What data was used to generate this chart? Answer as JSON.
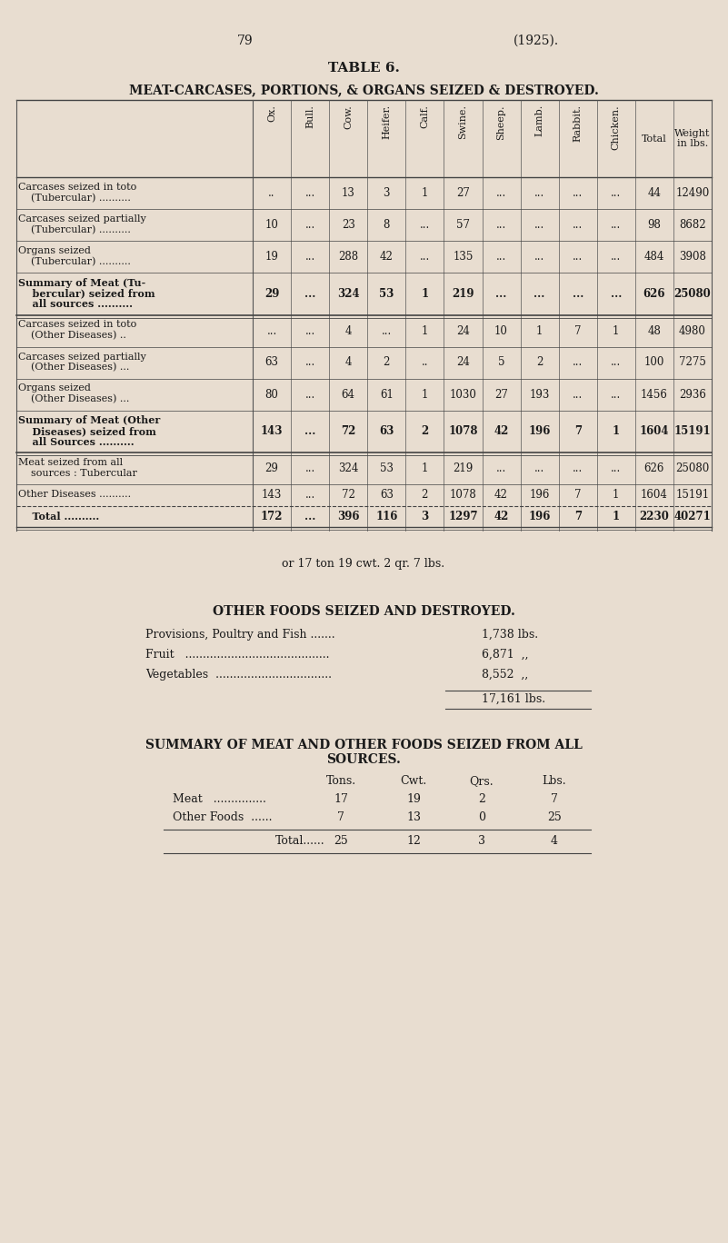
{
  "bg_color": "#e8ddd0",
  "text_color": "#1a1a1a",
  "page_num": "79",
  "year": "(1925).",
  "table_title": "TABLE 6.",
  "table_subtitle": "MEAT-CARCASES, PORTIONS, & ORGANS SEIZED & DESTROYED.",
  "col_headers": [
    "Ox.",
    "Bull.",
    "Cow.",
    "Heifer.",
    "Calf.",
    "Swine.",
    "Sheep.",
    "Lamb.",
    "Rabbit.",
    "Chicken.",
    "Total",
    "Weight\nin lbs."
  ],
  "rows": [
    {
      "label1": "Carcases seized in toto",
      "label2": "    (Tubercular) ..........",
      "label3": "",
      "values": [
        "..",
        "...",
        "13",
        "3",
        "1",
        "27",
        "...",
        "...",
        "...",
        "...",
        "44",
        "12490"
      ],
      "nlines": 2
    },
    {
      "label1": "Carcases seized partially",
      "label2": "    (Tubercular) ..........",
      "label3": "",
      "values": [
        "10",
        "...",
        "23",
        "8",
        "...",
        "57",
        "...",
        "...",
        "...",
        "...",
        "98",
        "8682"
      ],
      "nlines": 2
    },
    {
      "label1": "Organs seized",
      "label2": "    (Tubercular) ..........",
      "label3": "",
      "values": [
        "19",
        "...",
        "288",
        "42",
        "...",
        "135",
        "...",
        "...",
        "...",
        "...",
        "484",
        "3908"
      ],
      "nlines": 2
    },
    {
      "label1": "Summary of Meat (Tu-",
      "label2": "    bercular) seized from",
      "label3": "    all sources ..........",
      "values": [
        "29",
        "...",
        "324",
        "53",
        "1",
        "219",
        "...",
        "...",
        "...",
        "...",
        "626",
        "25080"
      ],
      "nlines": 3,
      "bold": true
    },
    {
      "label1": "Carcases seized in toto",
      "label2": "    (Other Diseases) ..",
      "label3": "",
      "values": [
        "...",
        "...",
        "4",
        "...",
        "1",
        "24",
        "10",
        "1",
        "7",
        "1",
        "48",
        "4980"
      ],
      "nlines": 2
    },
    {
      "label1": "Carcases seized partially",
      "label2": "    (Other Diseases) ...",
      "label3": "",
      "values": [
        "63",
        "...",
        "4",
        "2",
        "..",
        "24",
        "5",
        "2",
        "...",
        "...",
        "100",
        "7275"
      ],
      "nlines": 2
    },
    {
      "label1": "Organs seized",
      "label2": "    (Other Diseases) ...",
      "label3": "",
      "values": [
        "80",
        "...",
        "64",
        "61",
        "1",
        "1030",
        "27",
        "193",
        "...",
        "...",
        "1456",
        "2936"
      ],
      "nlines": 2
    },
    {
      "label1": "Summary of Meat (Other",
      "label2": "    Diseases) seized from",
      "label3": "    all Sources ..........",
      "values": [
        "143",
        "...",
        "72",
        "63",
        "2",
        "1078",
        "42",
        "196",
        "7",
        "1",
        "1604",
        "15191"
      ],
      "nlines": 3,
      "bold": true
    },
    {
      "label1": "Meat seized from all",
      "label2": "    sources : Tubercular",
      "label3": "",
      "values": [
        "29",
        "...",
        "324",
        "53",
        "1",
        "219",
        "...",
        "...",
        "...",
        "...",
        "626",
        "25080"
      ],
      "nlines": 2
    },
    {
      "label1": "Other Diseases ..........",
      "label2": "",
      "label3": "",
      "values": [
        "143",
        "...",
        "72",
        "63",
        "2",
        "1078",
        "42",
        "196",
        "7",
        "1",
        "1604",
        "15191"
      ],
      "nlines": 1
    },
    {
      "label1": "    Total ..........",
      "label2": "",
      "label3": "",
      "values": [
        "172",
        "...",
        "396",
        "116",
        "3",
        "1297",
        "42",
        "196",
        "7",
        "1",
        "2230",
        "40271"
      ],
      "nlines": 1,
      "bold": true
    }
  ],
  "or_text": "or 17 ton 19 cwt. 2 qr. 7 lbs.",
  "other_foods_title": "OTHER FOODS SEIZED AND DESTROYED.",
  "other_foods": [
    [
      "Provisions, Poultry and Fish .......",
      "1,738 lbs."
    ],
    [
      "Fruit   .........................................",
      "6,871  ,,"
    ],
    [
      "Vegetables  .................................",
      "8,552  ,,"
    ]
  ],
  "other_foods_total": "17,161 lbs.",
  "summary_title1": "SUMMARY OF MEAT AND OTHER FOODS SEIZED FROM ALL",
  "summary_title2": "SOURCES.",
  "summary_headers": [
    "Tons.",
    "Cwt.",
    "Qrs.",
    "Lbs."
  ],
  "summary_rows": [
    [
      "Meat   ...............",
      "17",
      "19",
      "2",
      "7"
    ],
    [
      "Other Foods  ......",
      "7",
      "13",
      "0",
      "25"
    ]
  ],
  "summary_total": [
    "Total......",
    "25",
    "12",
    "3",
    "4"
  ]
}
